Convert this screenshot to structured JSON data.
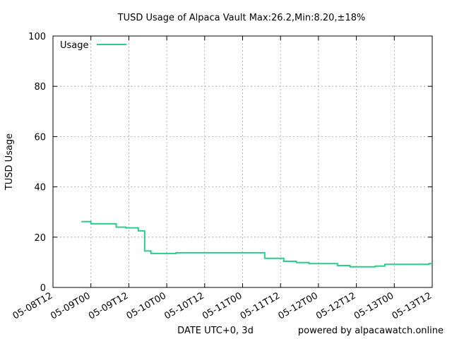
{
  "chart_data": {
    "type": "line",
    "title": "TUSD Usage of Alpaca Vault Max:26.2,Min:8.20,±18%",
    "xlabel": "DATE UTC+0, 3d",
    "ylabel": "TUSD Usage",
    "credit": "powered by alpacawatch.online",
    "ylim": [
      0,
      100
    ],
    "xlim": [
      "2021-05-08T12:00",
      "2021-05-13T12:00"
    ],
    "yticks": [
      "0",
      "20",
      "40",
      "60",
      "80",
      "100"
    ],
    "xticks": [
      "05-08T12",
      "05-09T00",
      "05-09T12",
      "05-10T00",
      "05-10T12",
      "05-11T00",
      "05-11T12",
      "05-12T00",
      "05-12T12",
      "05-13T00",
      "05-13T12"
    ],
    "grid": true,
    "legend_position": "top-left",
    "series": [
      {
        "name": "Usage",
        "color": "#2ecc8a",
        "points": [
          [
            "2021-05-08T21:00",
            26.2
          ],
          [
            "2021-05-09T00:00",
            26.2
          ],
          [
            "2021-05-09T00:00",
            25.3
          ],
          [
            "2021-05-09T08:00",
            25.3
          ],
          [
            "2021-05-09T08:00",
            24.0
          ],
          [
            "2021-05-09T11:00",
            24.0
          ],
          [
            "2021-05-09T11:00",
            23.7
          ],
          [
            "2021-05-09T15:00",
            23.7
          ],
          [
            "2021-05-09T15:00",
            22.5
          ],
          [
            "2021-05-09T17:00",
            22.5
          ],
          [
            "2021-05-09T17:00",
            14.5
          ],
          [
            "2021-05-09T19:00",
            14.5
          ],
          [
            "2021-05-09T19:00",
            13.5
          ],
          [
            "2021-05-10T03:00",
            13.5
          ],
          [
            "2021-05-10T03:00",
            13.8
          ],
          [
            "2021-05-11T07:00",
            13.8
          ],
          [
            "2021-05-11T07:00",
            11.6
          ],
          [
            "2021-05-11T13:00",
            11.6
          ],
          [
            "2021-05-11T13:00",
            10.4
          ],
          [
            "2021-05-11T17:00",
            10.4
          ],
          [
            "2021-05-11T17:00",
            9.9
          ],
          [
            "2021-05-11T21:00",
            9.9
          ],
          [
            "2021-05-11T21:00",
            9.5
          ],
          [
            "2021-05-12T06:00",
            9.5
          ],
          [
            "2021-05-12T06:00",
            8.7
          ],
          [
            "2021-05-12T10:00",
            8.7
          ],
          [
            "2021-05-12T10:00",
            8.2
          ],
          [
            "2021-05-12T18:00",
            8.2
          ],
          [
            "2021-05-12T18:00",
            8.5
          ],
          [
            "2021-05-12T21:00",
            8.5
          ],
          [
            "2021-05-12T21:00",
            9.2
          ],
          [
            "2021-05-13T11:00",
            9.2
          ],
          [
            "2021-05-13T11:00",
            9.5
          ],
          [
            "2021-05-13T12:00",
            9.5
          ]
        ]
      }
    ]
  }
}
